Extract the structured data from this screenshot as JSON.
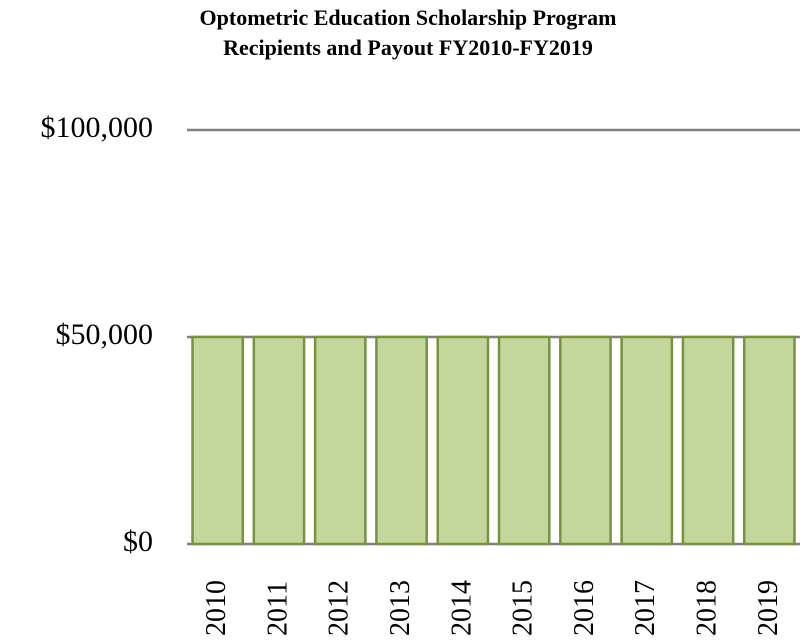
{
  "chart_data": {
    "type": "bar",
    "title": "Optometric Education Scholarship Program",
    "subtitle": "Recipients and Payout FY2010-FY2019",
    "categories": [
      "2010",
      "2011",
      "2012",
      "2013",
      "2014",
      "2015",
      "2016",
      "2017",
      "2018",
      "2019"
    ],
    "values": [
      50000,
      50000,
      50000,
      50000,
      50000,
      50000,
      50000,
      50000,
      50000,
      50000
    ],
    "color": "#c3d69b",
    "ylim": [
      0,
      100000
    ],
    "yticks": [
      {
        "value": 0,
        "label": "$0"
      },
      {
        "value": 50000,
        "label": "$50,000"
      },
      {
        "value": 100000,
        "label": "$100,000"
      }
    ],
    "grid": true
  }
}
